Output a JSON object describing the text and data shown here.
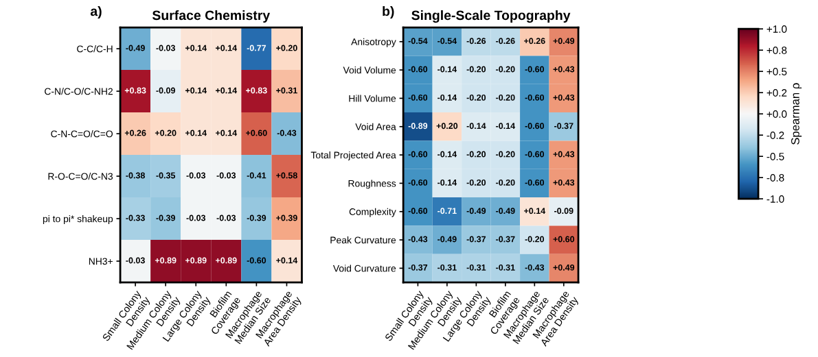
{
  "chart_data": [
    {
      "type": "heatmap",
      "title": "Surface Chemistry",
      "annotations": [
        "a)"
      ],
      "categories": [
        "Small Colony\nDensity",
        "Medium Colony\nDensity",
        "Large Colony\nDensity",
        "Biofilm\nCoverage",
        "Macrophage\nMedian Size",
        "Macrophage\nArea Density"
      ],
      "y_categories": [
        "C-C/C-H",
        "C-N/C-O/C-NH2",
        "C-N-C=O/C=O",
        "R-O-C=O/C-N3",
        "pi to pi* shakeup",
        "NH3+"
      ],
      "cells": [
        [
          -0.49,
          -0.03,
          0.14,
          0.14,
          -0.77,
          0.2
        ],
        [
          0.83,
          -0.09,
          0.14,
          0.14,
          0.83,
          0.31
        ],
        [
          0.26,
          0.2,
          0.14,
          0.14,
          0.6,
          -0.43
        ],
        [
          -0.38,
          -0.35,
          -0.03,
          -0.03,
          -0.41,
          0.58
        ],
        [
          -0.33,
          -0.39,
          -0.03,
          -0.03,
          -0.39,
          0.39
        ],
        [
          -0.03,
          0.89,
          0.89,
          0.89,
          -0.6,
          0.14
        ]
      ],
      "cell_labels": [
        [
          "-0.49",
          "-0.03",
          "+0.14",
          "+0.14",
          "-0.77",
          "+0.20"
        ],
        [
          "+0.83",
          "-0.09",
          "+0.14",
          "+0.14",
          "+0.83",
          "+0.31"
        ],
        [
          "+0.26",
          "+0.20",
          "+0.14",
          "+0.14",
          "+0.60",
          "-0.43"
        ],
        [
          "-0.38",
          "-0.35",
          "-0.03",
          "-0.03",
          "-0.41",
          "+0.58"
        ],
        [
          "-0.33",
          "-0.39",
          "-0.03",
          "-0.03",
          "-0.39",
          "+0.39"
        ],
        [
          "-0.03",
          "+0.89",
          "+0.89",
          "+0.89",
          "-0.60",
          "+0.14"
        ]
      ]
    },
    {
      "type": "heatmap",
      "title": "Single-Scale Topography",
      "annotations": [
        "b)"
      ],
      "clabel": "Spearman ρ",
      "categories": [
        "Small Colony\nDensity",
        "Medium Colony\nDensity",
        "Large Colony\nDensity",
        "Biofilm\nCoverage",
        "Macrophage\nMedian Size",
        "Macrophage\nArea Density"
      ],
      "y_categories": [
        "Anisotropy",
        "Void Volume",
        "Hill Volume",
        "Void Area",
        "Total Projected Area",
        "Roughness",
        "Complexity",
        "Peak Curvature",
        "Void Curvature"
      ],
      "cells": [
        [
          -0.54,
          -0.54,
          -0.26,
          -0.26,
          0.26,
          0.49
        ],
        [
          -0.6,
          -0.14,
          -0.2,
          -0.2,
          -0.6,
          0.43
        ],
        [
          -0.6,
          -0.14,
          -0.2,
          -0.2,
          -0.6,
          0.43
        ],
        [
          -0.89,
          0.2,
          -0.14,
          -0.14,
          -0.6,
          -0.37
        ],
        [
          -0.6,
          -0.14,
          -0.2,
          -0.2,
          -0.6,
          0.43
        ],
        [
          -0.6,
          -0.14,
          -0.2,
          -0.2,
          -0.6,
          0.43
        ],
        [
          -0.6,
          -0.71,
          -0.49,
          -0.49,
          0.14,
          -0.09
        ],
        [
          -0.43,
          -0.49,
          -0.37,
          -0.37,
          -0.2,
          0.6
        ],
        [
          -0.37,
          -0.31,
          -0.31,
          -0.31,
          -0.43,
          0.49
        ]
      ],
      "cell_labels": [
        [
          "-0.54",
          "-0.54",
          "-0.26",
          "-0.26",
          "+0.26",
          "+0.49"
        ],
        [
          "-0.60",
          "-0.14",
          "-0.20",
          "-0.20",
          "-0.60",
          "+0.43"
        ],
        [
          "-0.60",
          "-0.14",
          "-0.20",
          "-0.20",
          "-0.60",
          "+0.43"
        ],
        [
          "-0.89",
          "+0.20",
          "-0.14",
          "-0.14",
          "-0.60",
          "-0.37"
        ],
        [
          "-0.60",
          "-0.14",
          "-0.20",
          "-0.20",
          "-0.60",
          "+0.43"
        ],
        [
          "-0.60",
          "-0.14",
          "-0.20",
          "-0.20",
          "-0.60",
          "+0.43"
        ],
        [
          "-0.60",
          "-0.71",
          "-0.49",
          "-0.49",
          "+0.14",
          "-0.09"
        ],
        [
          "-0.43",
          "-0.49",
          "-0.37",
          "-0.37",
          "-0.20",
          "+0.60"
        ],
        [
          "-0.37",
          "-0.31",
          "-0.31",
          "-0.31",
          "-0.43",
          "+0.49"
        ]
      ],
      "clim": [
        -1.0,
        1.0
      ],
      "cticks": [
        {
          "value": 1.0,
          "label": "+1.0"
        },
        {
          "value": 0.75,
          "label": "+0.8"
        },
        {
          "value": 0.5,
          "label": "+0.5"
        },
        {
          "value": 0.25,
          "label": "+0.2"
        },
        {
          "value": 0.0,
          "label": "+0.0"
        },
        {
          "value": -0.25,
          "label": "-0.2"
        },
        {
          "value": -0.5,
          "label": "-0.5"
        },
        {
          "value": -0.75,
          "label": "-0.8"
        },
        {
          "value": -1.0,
          "label": "-1.0"
        }
      ]
    }
  ]
}
